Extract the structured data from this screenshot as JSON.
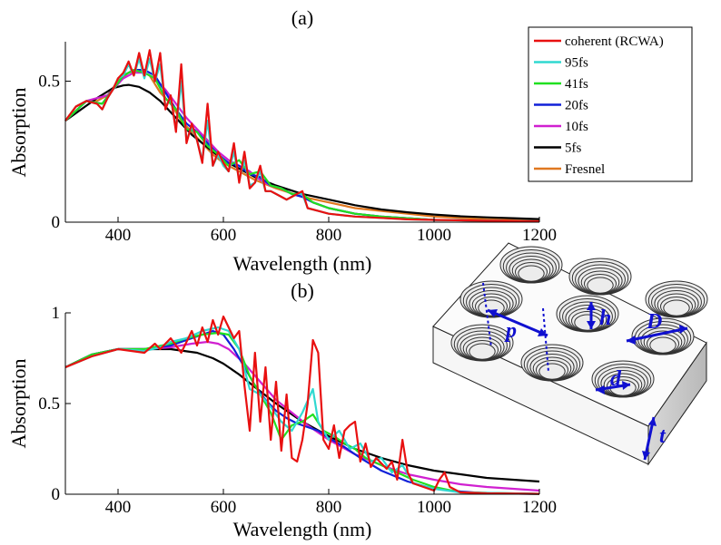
{
  "legend": {
    "placement": "top-right",
    "entries": [
      {
        "name": "coherent (RCWA)",
        "color": "#e81010"
      },
      {
        "name": "95fs",
        "color": "#30d8d0"
      },
      {
        "name": "41fs",
        "color": "#20e020"
      },
      {
        "name": "20fs",
        "color": "#1020d8"
      },
      {
        "name": "10fs",
        "color": "#d020d0"
      },
      {
        "name": "5fs",
        "color": "#000000"
      },
      {
        "name": "Fresnel",
        "color": "#e07820"
      }
    ]
  },
  "structure": {
    "labels": {
      "p": "p",
      "h": "h",
      "D": "D",
      "d": "d",
      "t": "t"
    },
    "arrow_color": "#1010d0"
  },
  "chart_data": [
    {
      "type": "line",
      "title": "(a)",
      "xlabel": "Wavelength (nm)",
      "ylabel": "Absorption",
      "xlim": [
        300,
        1200
      ],
      "ylim": [
        0,
        0.64
      ],
      "xticks": [
        400,
        600,
        800,
        1000,
        1200
      ],
      "yticks": [
        0,
        0.5
      ],
      "ytick_labels": [
        "0",
        "0.5"
      ],
      "grid": false,
      "series": [
        {
          "name": "coherent (RCWA)",
          "color": "#e81010",
          "x": [
            300,
            320,
            340,
            360,
            370,
            380,
            390,
            400,
            410,
            420,
            430,
            440,
            450,
            460,
            470,
            480,
            490,
            500,
            510,
            520,
            530,
            540,
            550,
            560,
            570,
            580,
            590,
            600,
            610,
            620,
            630,
            640,
            650,
            660,
            670,
            680,
            690,
            700,
            720,
            740,
            750,
            760,
            780,
            800,
            850,
            900,
            950,
            1000,
            1100,
            1200
          ],
          "y": [
            0.36,
            0.41,
            0.43,
            0.42,
            0.4,
            0.44,
            0.47,
            0.51,
            0.53,
            0.57,
            0.52,
            0.6,
            0.52,
            0.61,
            0.5,
            0.6,
            0.4,
            0.45,
            0.32,
            0.56,
            0.28,
            0.35,
            0.29,
            0.21,
            0.42,
            0.2,
            0.25,
            0.21,
            0.18,
            0.28,
            0.14,
            0.25,
            0.12,
            0.14,
            0.2,
            0.11,
            0.11,
            0.1,
            0.08,
            0.1,
            0.11,
            0.05,
            0.04,
            0.03,
            0.02,
            0.015,
            0.01,
            0.008,
            0.005,
            0.003
          ]
        },
        {
          "name": "95fs",
          "color": "#30d8d0",
          "x": [
            300,
            320,
            340,
            360,
            370,
            380,
            390,
            400,
            410,
            420,
            430,
            440,
            450,
            460,
            470,
            480,
            490,
            500,
            510,
            520,
            530,
            540,
            550,
            560,
            570,
            580,
            590,
            600,
            610,
            620,
            630,
            640,
            650,
            660,
            670,
            680,
            690,
            700,
            720,
            740,
            750,
            760,
            780,
            800,
            850,
            900,
            950,
            1000,
            1100,
            1200
          ],
          "y": [
            0.36,
            0.41,
            0.43,
            0.42,
            0.4,
            0.44,
            0.47,
            0.51,
            0.52,
            0.56,
            0.52,
            0.58,
            0.51,
            0.58,
            0.5,
            0.56,
            0.41,
            0.44,
            0.33,
            0.5,
            0.29,
            0.34,
            0.29,
            0.22,
            0.36,
            0.2,
            0.24,
            0.2,
            0.18,
            0.25,
            0.15,
            0.22,
            0.13,
            0.14,
            0.18,
            0.11,
            0.11,
            0.1,
            0.08,
            0.1,
            0.1,
            0.05,
            0.04,
            0.03,
            0.02,
            0.015,
            0.01,
            0.008,
            0.005,
            0.003
          ]
        },
        {
          "name": "41fs",
          "color": "#20e020",
          "x": [
            300,
            340,
            370,
            390,
            410,
            430,
            450,
            470,
            490,
            510,
            530,
            550,
            570,
            590,
            610,
            630,
            650,
            670,
            690,
            710,
            730,
            750,
            770,
            800,
            850,
            900,
            1000,
            1200
          ],
          "y": [
            0.36,
            0.43,
            0.42,
            0.47,
            0.52,
            0.54,
            0.53,
            0.51,
            0.44,
            0.4,
            0.33,
            0.32,
            0.27,
            0.24,
            0.2,
            0.22,
            0.17,
            0.18,
            0.13,
            0.12,
            0.1,
            0.1,
            0.07,
            0.05,
            0.03,
            0.02,
            0.008,
            0.003
          ]
        },
        {
          "name": "20fs",
          "color": "#1020d8",
          "x": [
            300,
            340,
            370,
            390,
            410,
            430,
            450,
            470,
            490,
            510,
            530,
            550,
            570,
            590,
            610,
            630,
            650,
            670,
            690,
            710,
            730,
            750,
            770,
            800,
            850,
            900,
            1000,
            1200
          ],
          "y": [
            0.36,
            0.43,
            0.42,
            0.47,
            0.52,
            0.54,
            0.54,
            0.52,
            0.46,
            0.4,
            0.35,
            0.32,
            0.28,
            0.24,
            0.21,
            0.2,
            0.17,
            0.16,
            0.13,
            0.12,
            0.1,
            0.09,
            0.07,
            0.05,
            0.03,
            0.02,
            0.008,
            0.003
          ]
        },
        {
          "name": "10fs",
          "color": "#d020d0",
          "x": [
            300,
            340,
            380,
            410,
            430,
            450,
            470,
            490,
            510,
            530,
            550,
            570,
            590,
            610,
            630,
            650,
            670,
            690,
            710,
            730,
            750,
            770,
            800,
            850,
            900,
            1000,
            1200
          ],
          "y": [
            0.36,
            0.43,
            0.45,
            0.51,
            0.53,
            0.53,
            0.51,
            0.47,
            0.42,
            0.37,
            0.33,
            0.29,
            0.25,
            0.22,
            0.2,
            0.18,
            0.15,
            0.13,
            0.12,
            0.1,
            0.09,
            0.07,
            0.05,
            0.03,
            0.02,
            0.008,
            0.003
          ]
        },
        {
          "name": "5fs",
          "color": "#000000",
          "x": [
            300,
            330,
            360,
            390,
            410,
            420,
            440,
            460,
            480,
            500,
            520,
            540,
            560,
            580,
            600,
            630,
            660,
            700,
            750,
            800,
            850,
            900,
            950,
            1000,
            1050,
            1100,
            1150,
            1200
          ],
          "y": [
            0.36,
            0.4,
            0.44,
            0.475,
            0.485,
            0.487,
            0.48,
            0.46,
            0.43,
            0.39,
            0.35,
            0.31,
            0.28,
            0.25,
            0.22,
            0.19,
            0.16,
            0.13,
            0.1,
            0.08,
            0.06,
            0.045,
            0.035,
            0.027,
            0.021,
            0.017,
            0.014,
            0.011
          ]
        },
        {
          "name": "Fresnel",
          "color": "#e07820",
          "x": [
            300,
            320,
            340,
            360,
            380,
            400,
            420,
            440,
            460,
            480,
            500,
            520,
            540,
            560,
            580,
            600,
            630,
            660,
            700,
            750,
            800,
            850,
            900,
            950,
            1000,
            1100,
            1200
          ],
          "y": [
            0.36,
            0.41,
            0.43,
            0.43,
            0.45,
            0.5,
            0.53,
            0.54,
            0.52,
            0.46,
            0.42,
            0.36,
            0.32,
            0.28,
            0.24,
            0.21,
            0.18,
            0.15,
            0.12,
            0.09,
            0.07,
            0.05,
            0.04,
            0.03,
            0.02,
            0.01,
            0.005
          ]
        }
      ]
    },
    {
      "type": "line",
      "title": "(b)",
      "xlabel": "Wavelength (nm)",
      "ylabel": "Absorption",
      "xlim": [
        300,
        1200
      ],
      "ylim": [
        0,
        1.0
      ],
      "xticks": [
        400,
        600,
        800,
        1000,
        1200
      ],
      "yticks": [
        0,
        0.5,
        1
      ],
      "ytick_labels": [
        "0",
        "0.5",
        "1"
      ],
      "grid": false,
      "series": [
        {
          "name": "coherent (RCWA)",
          "color": "#e81010",
          "x": [
            300,
            350,
            400,
            450,
            470,
            480,
            500,
            520,
            540,
            550,
            560,
            570,
            580,
            590,
            600,
            610,
            620,
            630,
            640,
            650,
            660,
            670,
            680,
            690,
            700,
            710,
            720,
            730,
            740,
            750,
            760,
            770,
            780,
            790,
            800,
            810,
            820,
            830,
            840,
            850,
            860,
            870,
            880,
            890,
            900,
            910,
            920,
            930,
            940,
            950,
            960,
            970,
            980,
            990,
            1000,
            1010,
            1020,
            1030,
            1050,
            1100,
            1200
          ],
          "y": [
            0.7,
            0.76,
            0.8,
            0.78,
            0.83,
            0.8,
            0.86,
            0.78,
            0.9,
            0.82,
            0.92,
            0.84,
            0.96,
            0.88,
            0.98,
            0.92,
            0.86,
            0.9,
            0.6,
            0.35,
            0.78,
            0.4,
            0.7,
            0.3,
            0.62,
            0.24,
            0.55,
            0.2,
            0.18,
            0.3,
            0.5,
            0.85,
            0.78,
            0.3,
            0.25,
            0.38,
            0.2,
            0.35,
            0.38,
            0.4,
            0.18,
            0.28,
            0.15,
            0.2,
            0.17,
            0.14,
            0.18,
            0.08,
            0.3,
            0.12,
            0.06,
            0.05,
            0.04,
            0.03,
            0.02,
            0.08,
            0.12,
            0.04,
            0.01,
            0.005,
            0.002
          ]
        },
        {
          "name": "95fs",
          "color": "#30d8d0",
          "x": [
            300,
            350,
            400,
            450,
            480,
            500,
            530,
            560,
            590,
            610,
            630,
            650,
            670,
            690,
            710,
            730,
            750,
            770,
            780,
            800,
            820,
            840,
            860,
            880,
            900,
            920,
            940,
            960,
            1000,
            1050,
            1200
          ],
          "y": [
            0.7,
            0.76,
            0.8,
            0.79,
            0.81,
            0.84,
            0.86,
            0.9,
            0.92,
            0.9,
            0.8,
            0.58,
            0.55,
            0.48,
            0.4,
            0.35,
            0.45,
            0.58,
            0.4,
            0.3,
            0.35,
            0.25,
            0.28,
            0.18,
            0.2,
            0.12,
            0.16,
            0.06,
            0.03,
            0.01,
            0.002
          ]
        },
        {
          "name": "41fs",
          "color": "#20e020",
          "x": [
            300,
            350,
            400,
            450,
            500,
            530,
            560,
            590,
            610,
            630,
            650,
            670,
            690,
            710,
            730,
            750,
            770,
            790,
            810,
            830,
            850,
            870,
            900,
            930,
            960,
            1000,
            1050,
            1200
          ],
          "y": [
            0.7,
            0.77,
            0.8,
            0.8,
            0.83,
            0.86,
            0.88,
            0.89,
            0.88,
            0.8,
            0.65,
            0.55,
            0.45,
            0.3,
            0.38,
            0.4,
            0.44,
            0.35,
            0.32,
            0.28,
            0.25,
            0.2,
            0.16,
            0.12,
            0.08,
            0.04,
            0.01,
            0.002
          ]
        },
        {
          "name": "20fs",
          "color": "#1020d8",
          "x": [
            300,
            350,
            400,
            450,
            500,
            530,
            560,
            580,
            600,
            620,
            640,
            660,
            680,
            700,
            720,
            740,
            760,
            780,
            800,
            830,
            860,
            900,
            950,
            1000,
            1050,
            1100,
            1200
          ],
          "y": [
            0.7,
            0.77,
            0.8,
            0.8,
            0.82,
            0.85,
            0.88,
            0.9,
            0.88,
            0.8,
            0.7,
            0.6,
            0.52,
            0.46,
            0.42,
            0.39,
            0.37,
            0.35,
            0.31,
            0.26,
            0.2,
            0.13,
            0.07,
            0.03,
            0.015,
            0.005,
            0.002
          ]
        },
        {
          "name": "10fs",
          "color": "#d020d0",
          "x": [
            300,
            350,
            400,
            450,
            500,
            540,
            570,
            590,
            610,
            640,
            670,
            700,
            730,
            760,
            800,
            850,
            900,
            950,
            1000,
            1050,
            1100,
            1150,
            1200
          ],
          "y": [
            0.7,
            0.77,
            0.8,
            0.8,
            0.81,
            0.83,
            0.84,
            0.83,
            0.8,
            0.72,
            0.62,
            0.52,
            0.45,
            0.38,
            0.3,
            0.22,
            0.16,
            0.11,
            0.08,
            0.055,
            0.04,
            0.03,
            0.02
          ]
        },
        {
          "name": "5fs",
          "color": "#000000",
          "x": [
            300,
            350,
            400,
            450,
            500,
            550,
            580,
            600,
            630,
            660,
            700,
            750,
            800,
            850,
            900,
            950,
            1000,
            1050,
            1100,
            1150,
            1200
          ],
          "y": [
            0.7,
            0.77,
            0.8,
            0.8,
            0.8,
            0.78,
            0.75,
            0.72,
            0.66,
            0.59,
            0.5,
            0.4,
            0.32,
            0.25,
            0.2,
            0.16,
            0.13,
            0.11,
            0.09,
            0.08,
            0.07
          ]
        }
      ]
    }
  ]
}
